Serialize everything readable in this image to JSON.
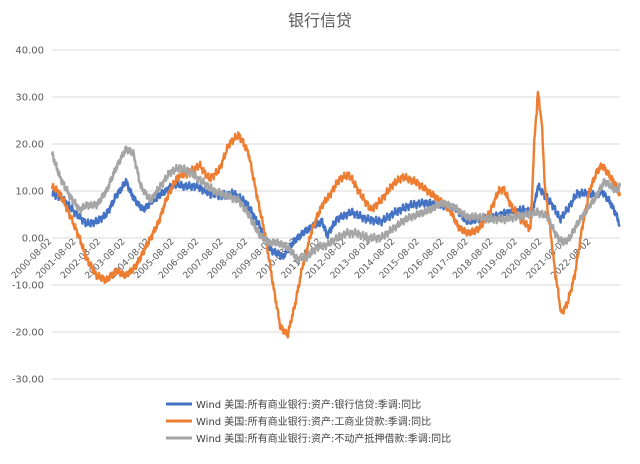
{
  "chart_data": {
    "type": "line",
    "title": "银行信贷",
    "ylim": [
      -30,
      40
    ],
    "yticks": [
      "40.00",
      "30.00",
      "20.00",
      "10.00",
      "0.00",
      "-10.00",
      "-20.00",
      "-30.00"
    ],
    "yticks_values": [
      40,
      30,
      20,
      10,
      0,
      -10,
      -20,
      -30
    ],
    "x_start": 2000.58,
    "x_end": 2023.75,
    "xtick_labels": [
      "2000-08-02",
      "2001-08-02",
      "2002-08-02",
      "2003-08-02",
      "2004-08-02",
      "2005-08-02",
      "2006-08-02",
      "2007-08-02",
      "2008-08-02",
      "2009-08-02",
      "2010-08-02",
      "2011-08-02",
      "2012-08-02",
      "2013-08-02",
      "2014-08-02",
      "2015-08-02",
      "2016-08-02",
      "2017-08-02",
      "2018-08-02",
      "2019-08-02",
      "2020-08-02",
      "2021-08-02",
      "2022-08-02"
    ],
    "grid": true,
    "legend_position": "bottom",
    "series": [
      {
        "name": "Wind 美国:所有商业银行:资产:银行信贷:季调:同比",
        "color": "#4472c4",
        "points": [
          [
            2000.58,
            9.5
          ],
          [
            2001.0,
            8.5
          ],
          [
            2001.5,
            5.5
          ],
          [
            2002.0,
            3.0
          ],
          [
            2002.4,
            3.5
          ],
          [
            2002.8,
            5.0
          ],
          [
            2003.2,
            9.0
          ],
          [
            2003.6,
            12.0
          ],
          [
            2003.9,
            8.5
          ],
          [
            2004.3,
            6.0
          ],
          [
            2004.7,
            8.0
          ],
          [
            2005.2,
            10.0
          ],
          [
            2005.6,
            11.5
          ],
          [
            2006.0,
            11.0
          ],
          [
            2006.5,
            11.0
          ],
          [
            2007.0,
            9.5
          ],
          [
            2007.5,
            9.0
          ],
          [
            2008.0,
            9.5
          ],
          [
            2008.5,
            7.5
          ],
          [
            2009.0,
            3.0
          ],
          [
            2009.5,
            -2.5
          ],
          [
            2010.0,
            -4.0
          ],
          [
            2010.4,
            -1.0
          ],
          [
            2010.8,
            1.0
          ],
          [
            2011.2,
            2.5
          ],
          [
            2011.6,
            3.5
          ],
          [
            2011.8,
            0.5
          ],
          [
            2012.2,
            4.0
          ],
          [
            2012.8,
            5.5
          ],
          [
            2013.4,
            4.0
          ],
          [
            2014.0,
            3.5
          ],
          [
            2014.6,
            5.5
          ],
          [
            2015.2,
            7.0
          ],
          [
            2015.8,
            7.5
          ],
          [
            2016.4,
            7.0
          ],
          [
            2017.0,
            6.5
          ],
          [
            2017.5,
            3.5
          ],
          [
            2018.0,
            4.0
          ],
          [
            2018.6,
            4.5
          ],
          [
            2019.2,
            5.5
          ],
          [
            2019.8,
            6.0
          ],
          [
            2020.2,
            5.5
          ],
          [
            2020.4,
            11.0
          ],
          [
            2020.7,
            9.0
          ],
          [
            2021.0,
            7.0
          ],
          [
            2021.3,
            4.0
          ],
          [
            2021.6,
            6.0
          ],
          [
            2022.0,
            9.5
          ],
          [
            2022.4,
            9.5
          ],
          [
            2022.8,
            9.0
          ],
          [
            2023.0,
            10.0
          ],
          [
            2023.3,
            8.0
          ],
          [
            2023.6,
            5.0
          ],
          [
            2023.75,
            2.5
          ]
        ]
      },
      {
        "name": "Wind 美国:所有商业银行:资产:工商业贷款:季调:同比",
        "color": "#ed7d31",
        "points": [
          [
            2000.58,
            11.0
          ],
          [
            2000.9,
            9.5
          ],
          [
            2001.3,
            5.0
          ],
          [
            2001.7,
            0.0
          ],
          [
            2002.0,
            -4.5
          ],
          [
            2002.4,
            -8.0
          ],
          [
            2002.8,
            -9.0
          ],
          [
            2003.2,
            -7.0
          ],
          [
            2003.6,
            -8.0
          ],
          [
            2004.0,
            -6.0
          ],
          [
            2004.5,
            -1.0
          ],
          [
            2004.9,
            3.0
          ],
          [
            2005.3,
            9.0
          ],
          [
            2005.7,
            13.0
          ],
          [
            2006.2,
            14.0
          ],
          [
            2006.6,
            15.5
          ],
          [
            2007.0,
            12.5
          ],
          [
            2007.4,
            14.5
          ],
          [
            2007.8,
            20.0
          ],
          [
            2008.2,
            22.0
          ],
          [
            2008.6,
            18.0
          ],
          [
            2008.9,
            10.0
          ],
          [
            2009.3,
            0.0
          ],
          [
            2009.6,
            -10.0
          ],
          [
            2009.9,
            -19.0
          ],
          [
            2010.2,
            -20.5
          ],
          [
            2010.5,
            -14.0
          ],
          [
            2010.8,
            -6.0
          ],
          [
            2011.2,
            2.0
          ],
          [
            2011.6,
            7.0
          ],
          [
            2011.9,
            9.0
          ],
          [
            2012.3,
            12.5
          ],
          [
            2012.7,
            13.5
          ],
          [
            2013.2,
            9.0
          ],
          [
            2013.6,
            6.0
          ],
          [
            2014.0,
            8.0
          ],
          [
            2014.5,
            11.5
          ],
          [
            2014.9,
            13.0
          ],
          [
            2015.4,
            12.0
          ],
          [
            2015.9,
            10.0
          ],
          [
            2016.4,
            8.0
          ],
          [
            2016.8,
            6.0
          ],
          [
            2017.2,
            2.0
          ],
          [
            2017.6,
            1.0
          ],
          [
            2018.0,
            2.0
          ],
          [
            2018.4,
            5.0
          ],
          [
            2018.8,
            10.0
          ],
          [
            2019.0,
            10.5
          ],
          [
            2019.3,
            7.0
          ],
          [
            2019.7,
            4.0
          ],
          [
            2020.1,
            2.0
          ],
          [
            2020.25,
            20.0
          ],
          [
            2020.4,
            31.0
          ],
          [
            2020.55,
            25.0
          ],
          [
            2020.7,
            10.0
          ],
          [
            2020.9,
            2.0
          ],
          [
            2021.1,
            -7.0
          ],
          [
            2021.35,
            -16.0
          ],
          [
            2021.6,
            -14.0
          ],
          [
            2021.9,
            -8.0
          ],
          [
            2022.2,
            2.0
          ],
          [
            2022.5,
            10.0
          ],
          [
            2022.8,
            14.0
          ],
          [
            2023.0,
            15.5
          ],
          [
            2023.3,
            13.5
          ],
          [
            2023.6,
            11.0
          ],
          [
            2023.75,
            9.0
          ]
        ]
      },
      {
        "name": "Wind 美国:所有商业银行:资产:不动产抵押借款:季调:同比",
        "color": "#a5a5a5",
        "points": [
          [
            2000.58,
            18.0
          ],
          [
            2000.9,
            13.0
          ],
          [
            2001.3,
            9.0
          ],
          [
            2001.7,
            6.0
          ],
          [
            2002.0,
            7.0
          ],
          [
            2002.4,
            7.0
          ],
          [
            2002.8,
            10.0
          ],
          [
            2003.2,
            15.0
          ],
          [
            2003.6,
            19.0
          ],
          [
            2003.9,
            18.0
          ],
          [
            2004.2,
            11.0
          ],
          [
            2004.6,
            8.0
          ],
          [
            2005.0,
            11.0
          ],
          [
            2005.4,
            14.0
          ],
          [
            2005.8,
            15.0
          ],
          [
            2006.2,
            14.0
          ],
          [
            2006.7,
            12.0
          ],
          [
            2007.2,
            10.0
          ],
          [
            2007.7,
            9.0
          ],
          [
            2008.2,
            8.0
          ],
          [
            2008.6,
            5.0
          ],
          [
            2009.0,
            1.0
          ],
          [
            2009.4,
            -1.0
          ],
          [
            2009.8,
            -1.0
          ],
          [
            2010.2,
            -2.0
          ],
          [
            2010.6,
            -4.5
          ],
          [
            2011.0,
            -4.0
          ],
          [
            2011.4,
            -2.0
          ],
          [
            2011.8,
            -1.5
          ],
          [
            2012.2,
            0.0
          ],
          [
            2012.6,
            1.0
          ],
          [
            2013.0,
            1.0
          ],
          [
            2013.5,
            0.0
          ],
          [
            2014.0,
            0.0
          ],
          [
            2014.5,
            2.0
          ],
          [
            2015.0,
            4.0
          ],
          [
            2015.5,
            5.0
          ],
          [
            2016.0,
            6.0
          ],
          [
            2016.5,
            7.5
          ],
          [
            2017.0,
            6.5
          ],
          [
            2017.5,
            4.5
          ],
          [
            2018.0,
            4.5
          ],
          [
            2018.5,
            4.0
          ],
          [
            2019.0,
            4.0
          ],
          [
            2019.5,
            4.5
          ],
          [
            2020.0,
            5.0
          ],
          [
            2020.4,
            5.5
          ],
          [
            2020.8,
            4.5
          ],
          [
            2021.1,
            1.0
          ],
          [
            2021.4,
            -1.0
          ],
          [
            2021.7,
            0.0
          ],
          [
            2022.0,
            3.0
          ],
          [
            2022.4,
            6.0
          ],
          [
            2022.8,
            9.0
          ],
          [
            2023.1,
            12.0
          ],
          [
            2023.4,
            11.0
          ],
          [
            2023.6,
            10.0
          ],
          [
            2023.75,
            11.0
          ]
        ]
      }
    ]
  }
}
